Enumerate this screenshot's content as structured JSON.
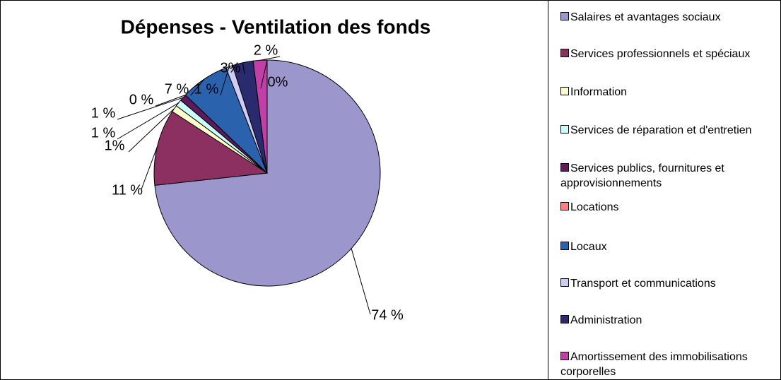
{
  "chart_data": {
    "type": "pie",
    "title": "Dépenses - Ventilation des fonds",
    "categories": [
      "Salaires et avantages sociaux",
      "Services professionnels et spéciaux",
      "Information",
      "Services de réparation et d'entretien",
      "Services publics, fournitures et approvisionnements",
      "Locations",
      "Locaux",
      "Transport et communications",
      "Administration",
      "Amortissement des immobilisations corporelles",
      null
    ],
    "values": [
      74,
      11,
      1,
      1,
      1,
      0,
      7,
      1,
      3,
      2,
      0
    ],
    "value_labels": [
      "74 %",
      "11 %",
      "1%",
      "1 %",
      "1 %",
      "0 %",
      "7 %",
      "1 %",
      "3%",
      "2 %",
      "0%"
    ],
    "colors": [
      "#9b97cd",
      "#8b3060",
      "#ffffcc",
      "#ccffff",
      "#5e1a5e",
      "#ff8080",
      "#2a62ae",
      "#ccccf4",
      "#2a2a6e",
      "#c040a8",
      "#ff0000"
    ]
  }
}
